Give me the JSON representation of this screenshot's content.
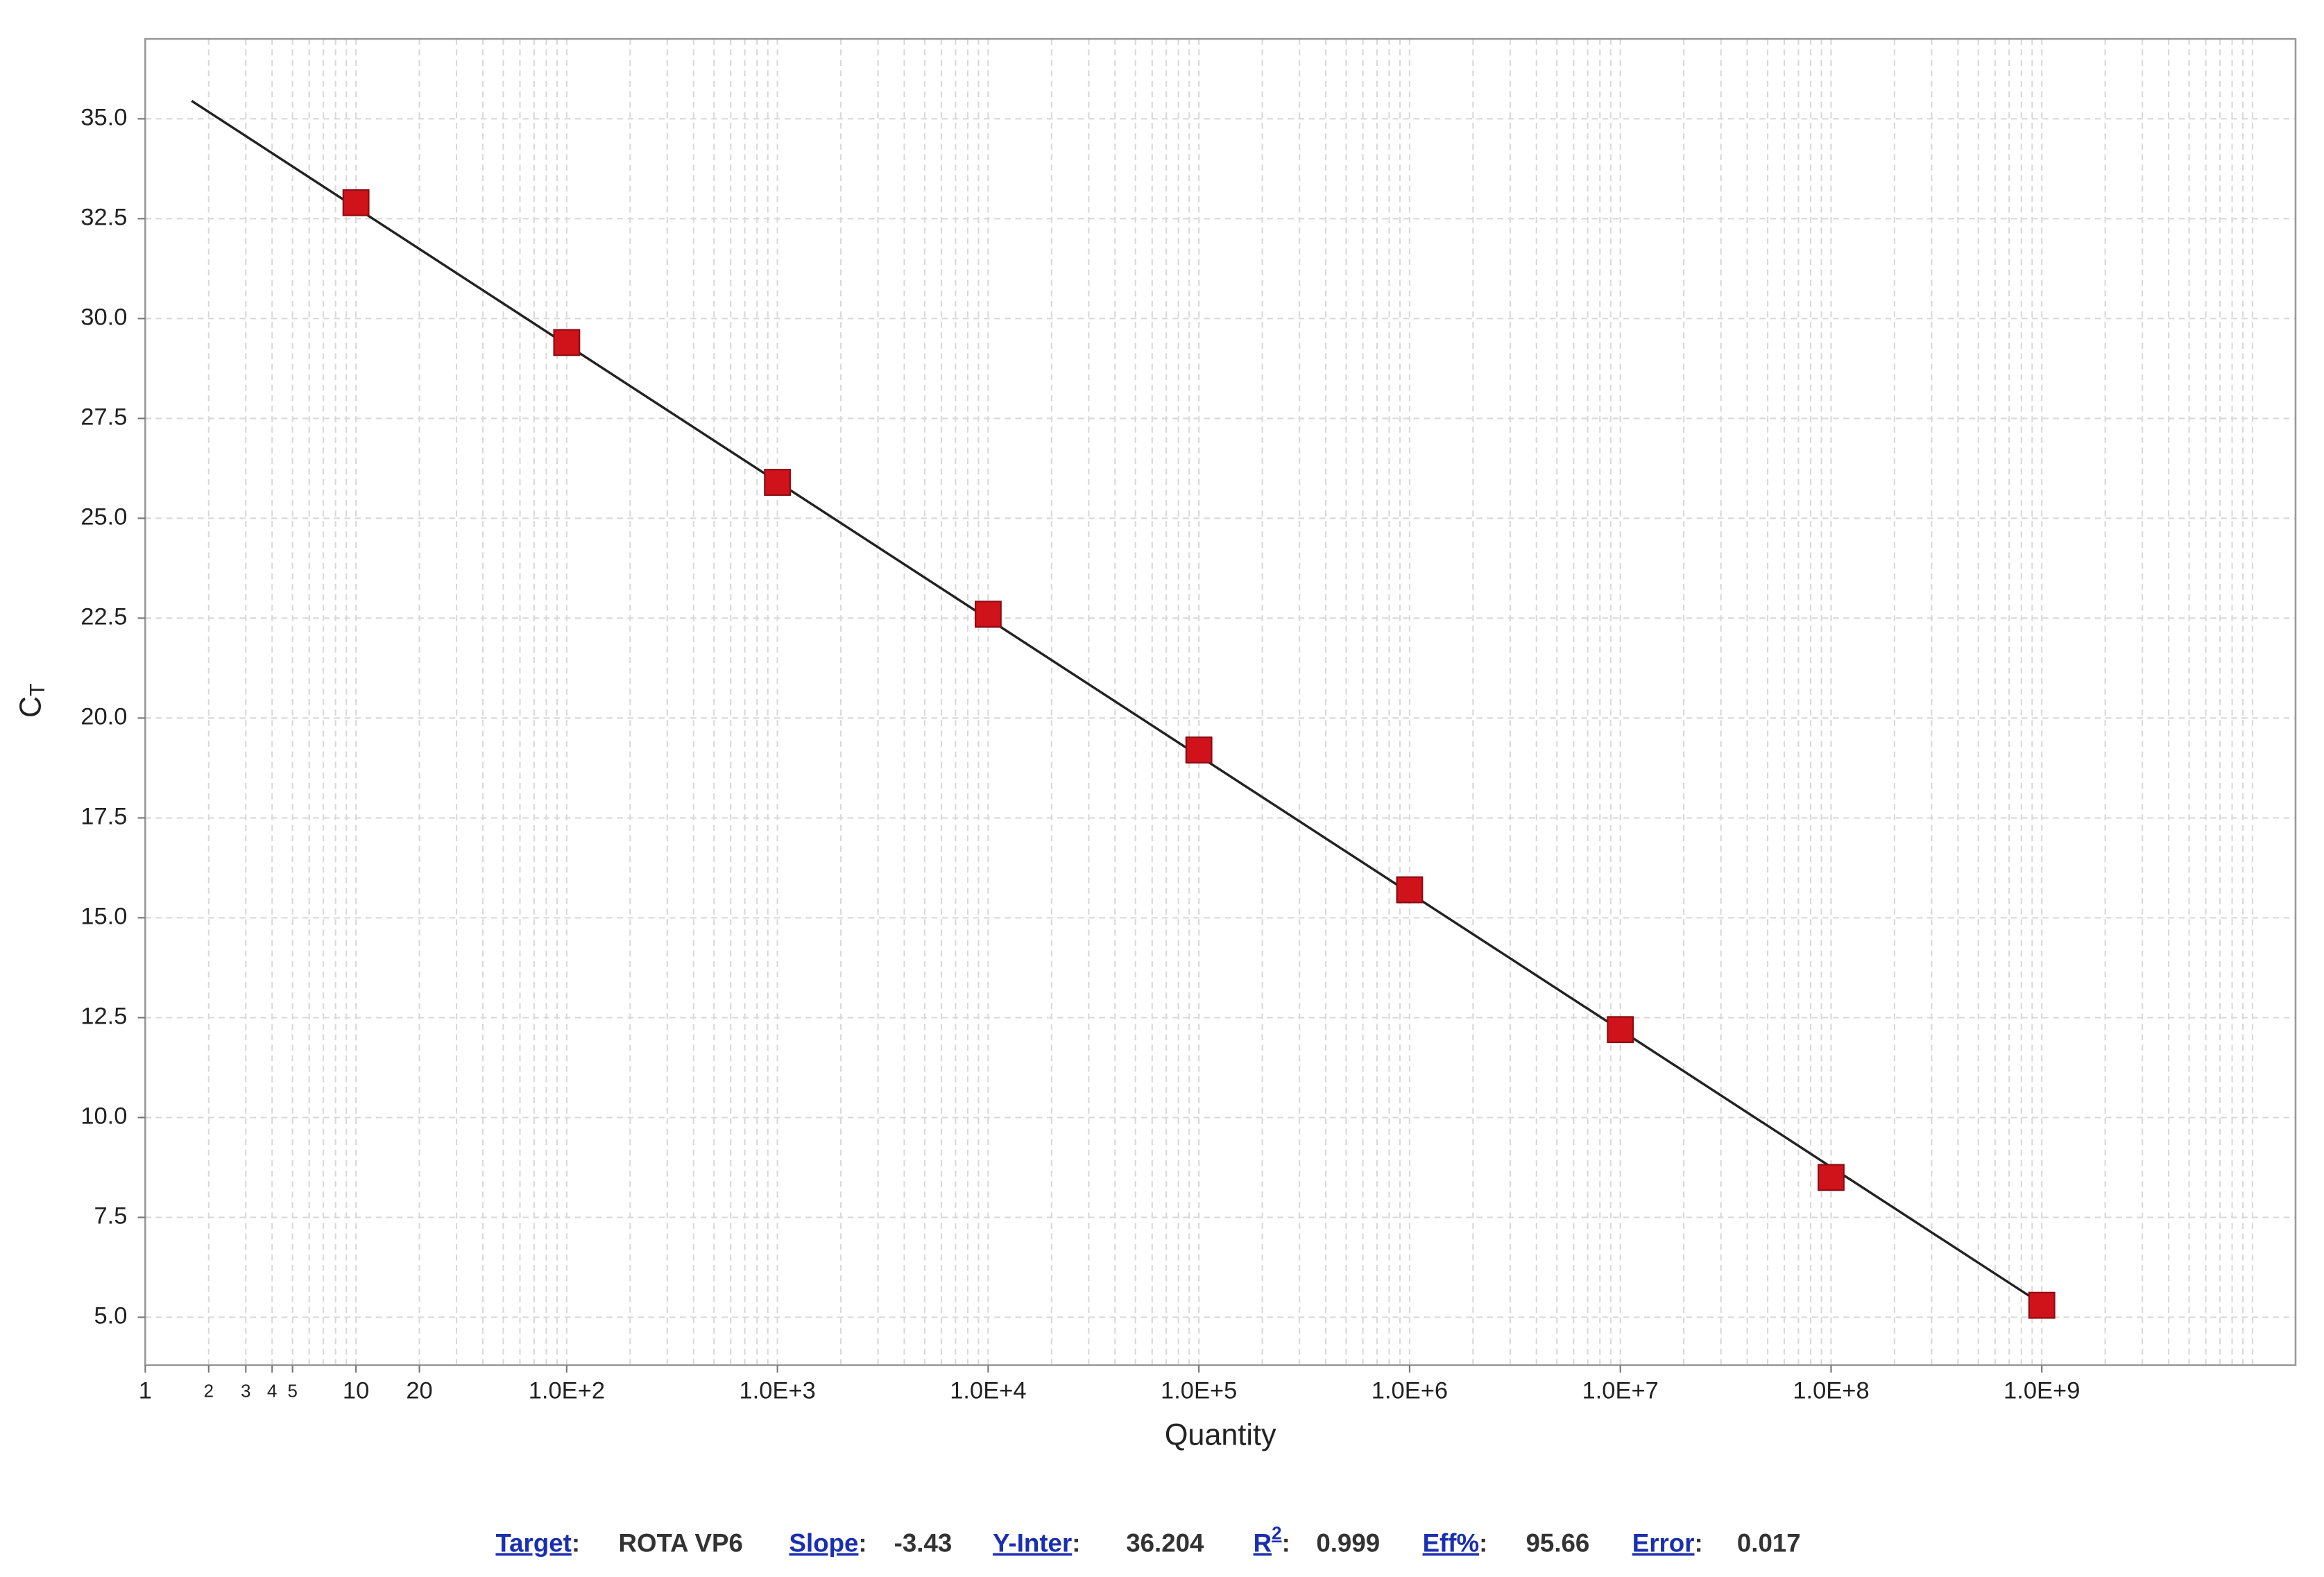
{
  "chart_data": {
    "type": "scatter",
    "xlabel": "Quantity",
    "ylabel": "C",
    "ylabel_subscript": "T",
    "xscale": "log",
    "xlim": [
      1,
      16000000000
    ],
    "ylim": [
      3.8,
      37
    ],
    "xticks": [
      1,
      2,
      3,
      4,
      5,
      10,
      20,
      {
        "value": 100,
        "label": "1.0E+2"
      },
      {
        "value": 1000,
        "label": "1.0E+3"
      },
      {
        "value": 10000,
        "label": "1.0E+4"
      },
      {
        "value": 100000,
        "label": "1.0E+5"
      },
      {
        "value": 1000000,
        "label": "1.0E+6"
      },
      {
        "value": 10000000,
        "label": "1.0E+7"
      },
      {
        "value": 100000000,
        "label": "1.0E+8"
      },
      {
        "value": 1000000000,
        "label": "1.0E+9"
      }
    ],
    "xgrid": [
      2,
      3,
      4,
      5,
      6,
      7,
      8,
      9,
      10,
      20,
      30,
      40,
      50,
      60,
      70,
      80,
      90,
      100,
      200.0,
      300.0,
      400.0,
      500.0,
      600.0,
      700.0,
      800.0,
      900.0,
      1000.0,
      2000.0,
      3000.0,
      4000.0,
      5000.0,
      6000.0,
      7000.0,
      8000.0,
      9000.0,
      10000.0,
      20000.0,
      30000.0,
      40000.0,
      50000.0,
      60000.0,
      70000.0,
      80000.0,
      90000.0,
      100000.0,
      200000.0,
      300000.0,
      400000.0,
      500000.0,
      600000.0,
      700000.0,
      800000.0,
      900000.0,
      1000000.0,
      2000000.0,
      3000000.0,
      4000000.0,
      5000000.0,
      6000000.0,
      7000000.0,
      8000000.0,
      9000000.0,
      10000000.0,
      20000000.0,
      30000000.0,
      40000000.0,
      50000000.0,
      60000000.0,
      70000000.0,
      80000000.0,
      90000000.0,
      100000000.0,
      200000000.0,
      300000000.0,
      400000000.0,
      500000000.0,
      600000000.0,
      700000000.0,
      800000000.0,
      900000000.0,
      1000000000.0,
      2000000000.0,
      3000000000.0,
      4000000000.0,
      5000000000.0,
      6000000000.0,
      7000000000.0,
      8000000000.0,
      9000000000.0,
      10000000000.0
    ],
    "yticks": [
      {
        "value": 5,
        "label": "5.0"
      },
      7.5,
      {
        "value": 10,
        "label": "10.0"
      },
      12.5,
      {
        "value": 15,
        "label": "15.0"
      },
      17.5,
      {
        "value": 20,
        "label": "20.0"
      },
      22.5,
      {
        "value": 25,
        "label": "25.0"
      },
      27.5,
      {
        "value": 30,
        "label": "30.0"
      },
      32.5,
      {
        "value": 35,
        "label": "35.0"
      }
    ],
    "grid": true,
    "series": [
      {
        "kind": "points",
        "color": "#d0121b",
        "x": [
          10,
          100,
          1000,
          10000,
          100000,
          1000000,
          10000000,
          100000000,
          1000000000
        ],
        "values": [
          32.9,
          29.4,
          25.9,
          22.6,
          19.2,
          15.7,
          12.2,
          8.5,
          5.3
        ]
      },
      {
        "kind": "line",
        "color": "#222222",
        "x": [
          1.66,
          1000000000
        ],
        "values": [
          35.45,
          5.33
        ]
      }
    ]
  },
  "fit_stats": {
    "separator": ":",
    "items": [
      {
        "label": "Target",
        "value": "ROTA VP6"
      },
      {
        "label": "Slope",
        "value": -3.43
      },
      {
        "label": "Y-Inter",
        "value": 36.204
      },
      {
        "label": "R",
        "superscript": "2",
        "value": 0.999
      },
      {
        "label": "Eff%",
        "value": 95.66
      },
      {
        "label": "Error",
        "value": 0.017
      }
    ]
  }
}
